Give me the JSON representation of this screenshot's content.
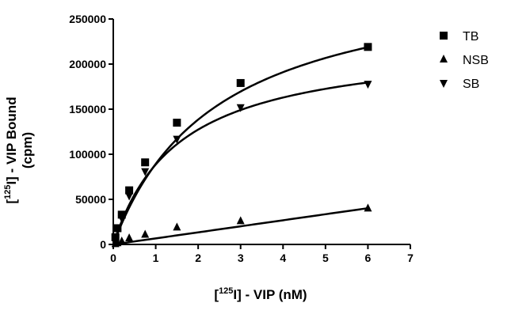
{
  "chart_data": {
    "type": "scatter",
    "xlabel_parts": [
      "[",
      "125",
      "I] - VIP (nM)"
    ],
    "ylabel_line1_parts": [
      "[",
      "125",
      "I] - VIP Bound"
    ],
    "ylabel_line2": "(cpm)",
    "xlim": [
      0,
      7
    ],
    "ylim": [
      0,
      250000
    ],
    "x_ticks": [
      0,
      1,
      2,
      3,
      4,
      5,
      6,
      7
    ],
    "y_ticks": [
      0,
      50000,
      100000,
      150000,
      200000,
      250000
    ],
    "x_tick_labels": [
      "0",
      "1",
      "2",
      "3",
      "4",
      "5",
      "6",
      "7"
    ],
    "y_tick_labels": [
      "0",
      "50000",
      "100000",
      "150000",
      "200000",
      "250000"
    ],
    "grid": false,
    "legend_position": "top-right",
    "series": [
      {
        "name": "TB",
        "marker": "square",
        "x": [
          0.05,
          0.1,
          0.2,
          0.375,
          0.75,
          1.5,
          3,
          6
        ],
        "y": [
          8000,
          18000,
          33000,
          60000,
          91000,
          135000,
          179000,
          219000
        ],
        "fit": {
          "bmax": 308000,
          "kd": 2.45
        }
      },
      {
        "name": "NSB",
        "marker": "triangle-up",
        "x": [
          0.05,
          0.1,
          0.2,
          0.375,
          0.75,
          1.5,
          3,
          6
        ],
        "y": [
          500,
          1500,
          3500,
          7000,
          11000,
          19000,
          26000,
          40000
        ],
        "fit": {
          "slope": 6700
        }
      },
      {
        "name": "SB",
        "marker": "triangle-down",
        "x": [
          0.05,
          0.1,
          0.2,
          0.375,
          0.75,
          1.5,
          3,
          6
        ],
        "y": [
          7000,
          16000,
          29000,
          54000,
          81000,
          117000,
          152000,
          178000
        ],
        "fit": {
          "bmax": 226000,
          "kd": 1.55
        }
      }
    ]
  }
}
